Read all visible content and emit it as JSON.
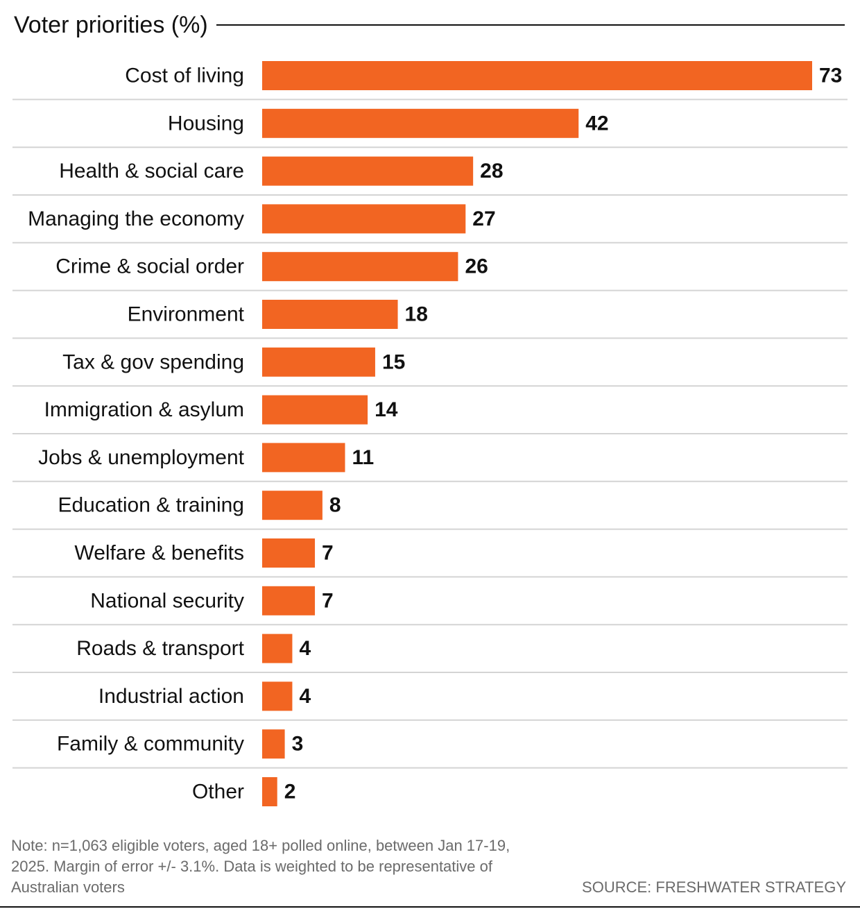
{
  "title": "Voter priorities (%)",
  "chart_data": {
    "type": "bar",
    "orientation": "horizontal",
    "title": "Voter priorities (%)",
    "categories": [
      "Cost of living",
      "Housing",
      "Health & social care",
      "Managing the economy",
      "Crime & social order",
      "Environment",
      "Tax & gov spending",
      "Immigration & asylum",
      "Jobs & unemployment",
      "Education & training",
      "Welfare & benefits",
      "National security",
      "Roads & transport",
      "Industrial action",
      "Family & community",
      "Other"
    ],
    "values": [
      73,
      42,
      28,
      27,
      26,
      18,
      15,
      14,
      11,
      8,
      7,
      7,
      4,
      4,
      3,
      2
    ],
    "xlim": [
      0,
      73
    ],
    "grid": false,
    "bar_color": "#f26522",
    "separator_color": "#d4d4d4"
  },
  "footer": {
    "note": "Note: n=1,063 eligible voters, aged 18+ polled online, between Jan 17-19, 2025. Margin of error +/- 3.1%. Data is weighted to be representative of Australian voters",
    "source": "SOURCE: FRESHWATER STRATEGY"
  }
}
